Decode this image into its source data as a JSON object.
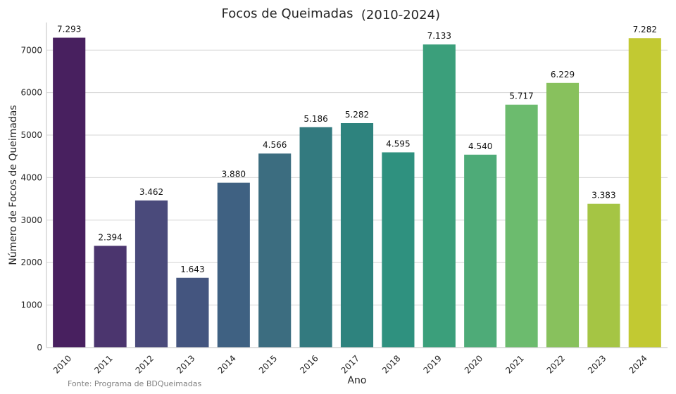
{
  "chart_data": {
    "type": "bar",
    "title": "Focos de Queimadas",
    "title_suffix": "(2010-2024)",
    "xlabel": "Ano",
    "ylabel": "Número de Focos de Queimadas",
    "source_note": "Fonte: Programa de BDQueimadas",
    "categories": [
      "2010",
      "2011",
      "2012",
      "2013",
      "2014",
      "2015",
      "2016",
      "2017",
      "2018",
      "2019",
      "2020",
      "2021",
      "2022",
      "2023",
      "2024"
    ],
    "values": [
      7293,
      2394,
      3462,
      1643,
      3880,
      4566,
      5186,
      5282,
      4595,
      7133,
      4540,
      5717,
      6229,
      3383,
      7282
    ],
    "data_labels": [
      "7.293",
      "2.394",
      "3.462",
      "1.643",
      "3.880",
      "4.566",
      "5.186",
      "5.282",
      "4.595",
      "7.133",
      "4.540",
      "5.717",
      "6.229",
      "3.383",
      "7.282"
    ],
    "colors": [
      "#48205f",
      "#4b356e",
      "#4a4a7b",
      "#44557f",
      "#3f6182",
      "#3c6d80",
      "#337a7f",
      "#2e837e",
      "#2f917f",
      "#3b9f7b",
      "#4eab78",
      "#6cbb6e",
      "#88c15d",
      "#a5c544",
      "#c2c932"
    ],
    "yticks": [
      0,
      1000,
      2000,
      3000,
      4000,
      5000,
      6000,
      7000
    ],
    "ylim": [
      0,
      7650
    ],
    "grid": true,
    "legend": "none",
    "palette": "viridis"
  }
}
